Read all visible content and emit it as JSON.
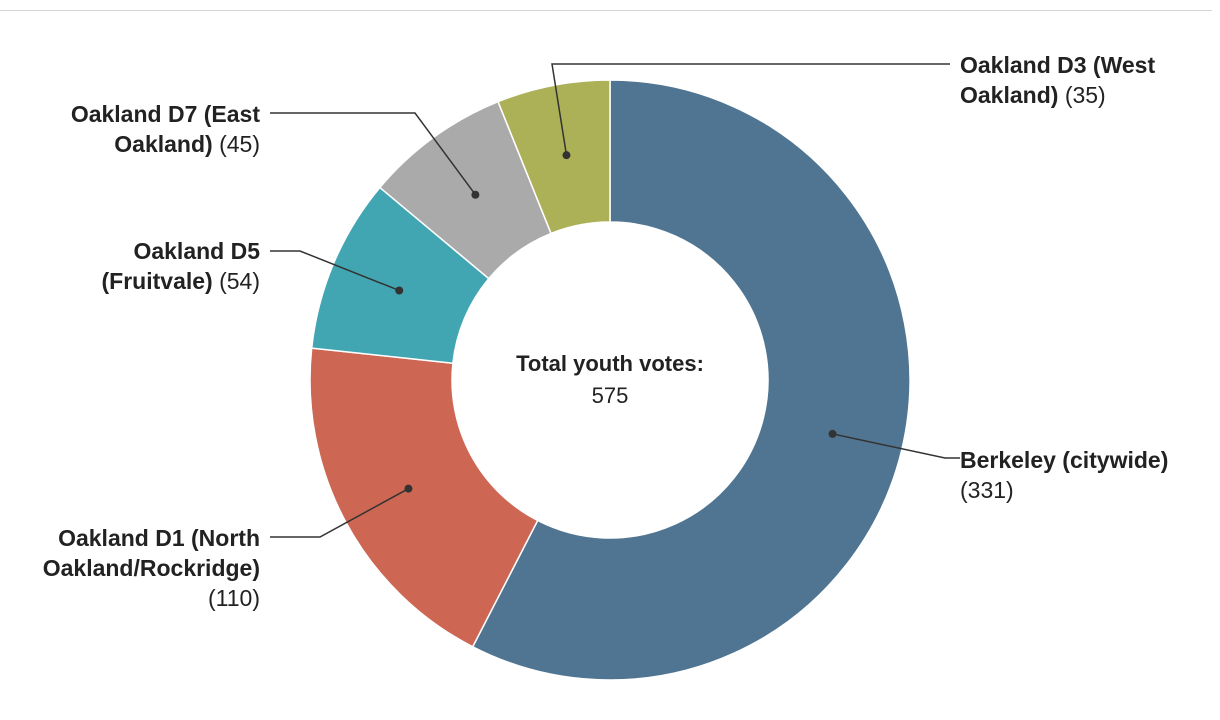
{
  "chart_data": {
    "type": "pie",
    "variant": "donut",
    "title": "",
    "center_title": "Total youth votes:",
    "center_value": "575",
    "series": [
      {
        "name": "Berkeley (citywide)",
        "label_name": "Berkeley (citywide)",
        "label_count": "(331)",
        "value": 331,
        "color": "#4f7592"
      },
      {
        "name": "Oakland D1 (North Oakland/Rockridge)",
        "label_name": "Oakland D1 (North Oakland/Rockridge)",
        "label_count": "(110)",
        "value": 110,
        "color": "#cd6753"
      },
      {
        "name": "Oakland D5 (Fruitvale)",
        "label_name": "Oakland D5 (Fruitvale)",
        "label_count": "(54)",
        "value": 54,
        "color": "#42a6b2"
      },
      {
        "name": "Oakland D7 (East Oakland)",
        "label_name": "Oakland D7 (East Oakland)",
        "label_count": "(45)",
        "value": 45,
        "color": "#aaaaaa"
      },
      {
        "name": "Oakland D3 (West Oakland)",
        "label_name": "Oakland D3 (West Oakland)",
        "label_count": "(35)",
        "value": 35,
        "color": "#acb057"
      }
    ],
    "legend": "none",
    "grid": false
  }
}
